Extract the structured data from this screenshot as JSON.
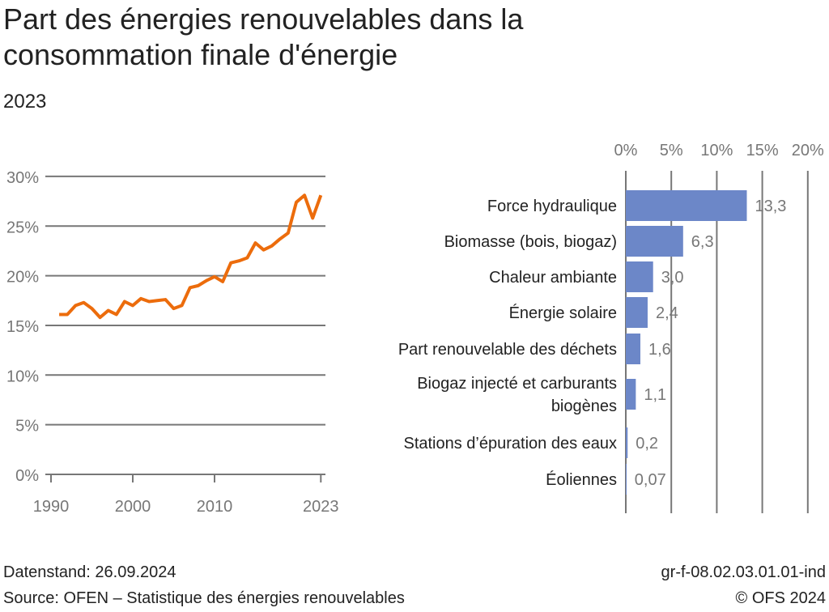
{
  "title": "Part des énergies renouvelables dans la consommation finale d'énergie",
  "subtitle": "2023",
  "chart_data": [
    {
      "type": "line",
      "x": [
        1991,
        1992,
        1993,
        1994,
        1995,
        1996,
        1997,
        1998,
        1999,
        2000,
        2001,
        2002,
        2003,
        2004,
        2005,
        2006,
        2007,
        2008,
        2009,
        2010,
        2011,
        2012,
        2013,
        2014,
        2015,
        2016,
        2017,
        2018,
        2019,
        2020,
        2021,
        2022,
        2023
      ],
      "series": [
        {
          "values": [
            16.1,
            16.1,
            17.0,
            17.3,
            16.7,
            15.8,
            16.5,
            16.1,
            17.4,
            17.0,
            17.7,
            17.4,
            17.5,
            17.6,
            16.7,
            17.0,
            18.8,
            19.0,
            19.5,
            19.9,
            19.4,
            21.3,
            21.5,
            21.8,
            23.3,
            22.6,
            23.0,
            23.7,
            24.3,
            27.4,
            28.1,
            25.8,
            28.1
          ],
          "color": "#ec6c0c"
        }
      ],
      "xticks": [
        "1990",
        "2000",
        "2010",
        "2023"
      ],
      "xtick_values": [
        1990,
        2000,
        2010,
        2023
      ],
      "yticks": [
        "0%",
        "5%",
        "10%",
        "15%",
        "20%",
        "25%",
        "30%"
      ],
      "ylim": [
        0,
        30
      ],
      "grid": true
    },
    {
      "type": "bar",
      "orientation": "horizontal",
      "categories": [
        "Force hydraulique",
        "Biomasse (bois, biogaz)",
        "Chaleur ambiante",
        "Énergie solaire",
        "Part renouvelable des déchets",
        "Biogaz injecté et carburants biogènes",
        "Stations d’épuration des eaux",
        "Éoliennes"
      ],
      "values": [
        13.3,
        6.3,
        3.0,
        2.4,
        1.6,
        1.1,
        0.2,
        0.07
      ],
      "labels": [
        "13,3",
        "6,3",
        "3,0",
        "2,4",
        "1,6",
        "1,1",
        "0,2",
        "0,07"
      ],
      "xticks": [
        "0%",
        "5%",
        "10%",
        "15%",
        "20%"
      ],
      "xlim": [
        0,
        20
      ],
      "color": "#6c87c8",
      "grid": true
    }
  ],
  "footer": {
    "date": "Datenstand: 26.09.2024",
    "source": "Source: OFEN – Statistique des énergies renouvelables",
    "code": "gr-f-08.02.03.01.01-ind",
    "copyright": "© OFS 2024"
  }
}
